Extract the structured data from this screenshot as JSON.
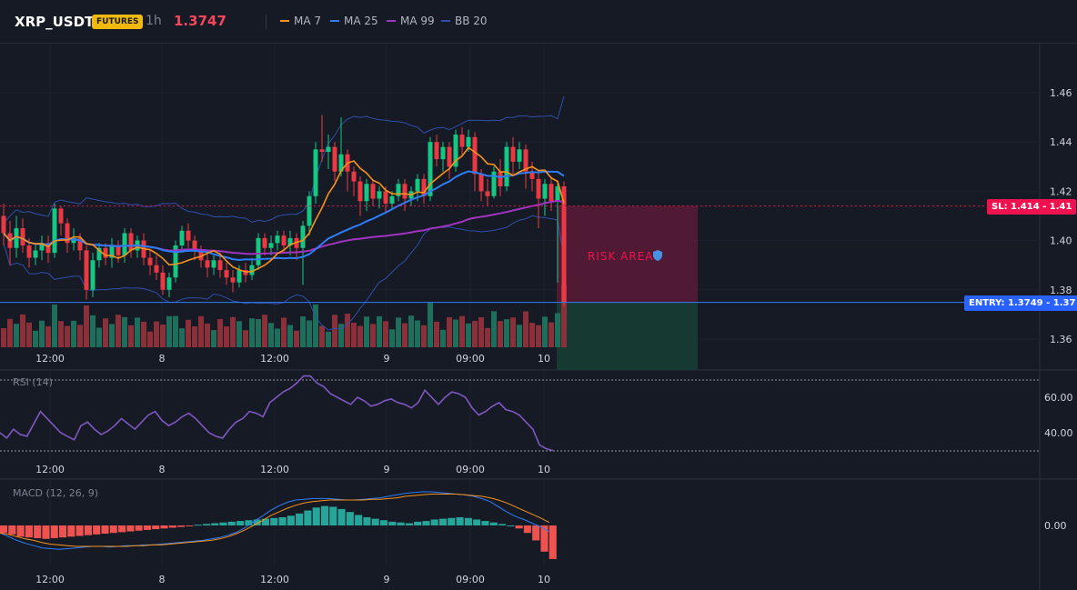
{
  "header": {
    "symbol": "XRP_USDT",
    "badge": "FUTURES",
    "interval": "1h",
    "price": "1.3747",
    "legend": [
      {
        "label": "MA 7",
        "color": "#f7931a"
      },
      {
        "label": "MA 25",
        "color": "#2f7df6"
      },
      {
        "label": "MA 99",
        "color": "#a033c0"
      },
      {
        "label": "BB 20",
        "color": "#2f4fa8"
      }
    ]
  },
  "trade": {
    "sl_label": "SL: 1.414 - 1.41",
    "entry_label": "ENTRY: 1.3749 - 1.37",
    "risk_label": "RISK AREA",
    "sl_price": 1.414,
    "entry_price": 1.3749
  },
  "colors": {
    "up": "#16c784",
    "down": "#ea3943",
    "vol_up": "#1e6e5c",
    "vol_down": "#8b2f38",
    "ma7": "#f7931a",
    "ma25": "#2f7df6",
    "ma99": "#a033c0",
    "bb": "#2f4fa8",
    "rsi": "#7e57c2",
    "macd": "#2f7df6",
    "signal": "#f7931a",
    "hist_up": "#26a69a",
    "hist_down": "#ef5350"
  },
  "chart_data": [
    {
      "type": "candlestick",
      "title": "XRP_USDT 1h",
      "x_tick_labels": [
        "12:00",
        "8",
        "12:00",
        "9",
        "09:00",
        "10"
      ],
      "y_ticks": [
        1.36,
        1.38,
        1.4,
        1.42,
        1.44,
        1.46
      ],
      "y_tick_labels": [
        "1.36",
        "1.38",
        "1.40",
        "1.42",
        "1.44",
        "1.46"
      ],
      "ylim": [
        1.35,
        1.48
      ],
      "candles": [
        [
          1.41,
          1.403,
          1.415,
          1.398
        ],
        [
          1.403,
          1.397,
          1.408,
          1.39
        ],
        [
          1.397,
          1.405,
          1.41,
          1.393
        ],
        [
          1.405,
          1.398,
          1.409,
          1.395
        ],
        [
          1.398,
          1.393,
          1.401,
          1.389
        ],
        [
          1.393,
          1.396,
          1.399,
          1.39
        ],
        [
          1.396,
          1.399,
          1.402,
          1.392
        ],
        [
          1.399,
          1.395,
          1.402,
          1.391
        ],
        [
          1.395,
          1.413,
          1.415,
          1.393
        ],
        [
          1.413,
          1.407,
          1.414,
          1.402
        ],
        [
          1.407,
          1.399,
          1.409,
          1.395
        ],
        [
          1.399,
          1.401,
          1.405,
          1.396
        ],
        [
          1.401,
          1.396,
          1.403,
          1.392
        ],
        [
          1.396,
          1.38,
          1.398,
          1.376
        ],
        [
          1.38,
          1.392,
          1.395,
          1.377
        ],
        [
          1.392,
          1.397,
          1.399,
          1.389
        ],
        [
          1.397,
          1.393,
          1.399,
          1.39
        ],
        [
          1.393,
          1.398,
          1.401,
          1.389
        ],
        [
          1.398,
          1.394,
          1.4,
          1.391
        ],
        [
          1.394,
          1.403,
          1.405,
          1.391
        ],
        [
          1.403,
          1.396,
          1.405,
          1.393
        ],
        [
          1.396,
          1.4,
          1.402,
          1.393
        ],
        [
          1.4,
          1.393,
          1.403,
          1.39
        ],
        [
          1.393,
          1.39,
          1.396,
          1.386
        ],
        [
          1.39,
          1.387,
          1.394,
          1.384
        ],
        [
          1.387,
          1.38,
          1.39,
          1.378
        ],
        [
          1.38,
          1.385,
          1.387,
          1.377
        ],
        [
          1.385,
          1.398,
          1.4,
          1.383
        ],
        [
          1.398,
          1.404,
          1.406,
          1.395
        ],
        [
          1.404,
          1.4,
          1.407,
          1.397
        ],
        [
          1.4,
          1.396,
          1.402,
          1.392
        ],
        [
          1.396,
          1.392,
          1.398,
          1.389
        ],
        [
          1.392,
          1.389,
          1.395,
          1.385
        ],
        [
          1.389,
          1.392,
          1.394,
          1.386
        ],
        [
          1.392,
          1.388,
          1.395,
          1.385
        ],
        [
          1.388,
          1.385,
          1.391,
          1.382
        ],
        [
          1.385,
          1.383,
          1.388,
          1.379
        ],
        [
          1.383,
          1.388,
          1.39,
          1.381
        ],
        [
          1.388,
          1.386,
          1.391,
          1.383
        ],
        [
          1.386,
          1.39,
          1.393,
          1.384
        ],
        [
          1.39,
          1.401,
          1.403,
          1.388
        ],
        [
          1.401,
          1.397,
          1.403,
          1.394
        ],
        [
          1.397,
          1.399,
          1.402,
          1.394
        ],
        [
          1.399,
          1.402,
          1.404,
          1.396
        ],
        [
          1.402,
          1.398,
          1.404,
          1.395
        ],
        [
          1.398,
          1.401,
          1.404,
          1.394
        ],
        [
          1.401,
          1.397,
          1.403,
          1.392
        ],
        [
          1.397,
          1.406,
          1.408,
          1.382
        ],
        [
          1.406,
          1.418,
          1.42,
          1.402
        ],
        [
          1.418,
          1.437,
          1.44,
          1.415
        ],
        [
          1.437,
          1.436,
          1.451,
          1.432
        ],
        [
          1.436,
          1.438,
          1.443,
          1.429
        ],
        [
          1.438,
          1.428,
          1.44,
          1.424
        ],
        [
          1.428,
          1.435,
          1.45,
          1.426
        ],
        [
          1.435,
          1.428,
          1.437,
          1.42
        ],
        [
          1.428,
          1.424,
          1.43,
          1.418
        ],
        [
          1.424,
          1.416,
          1.426,
          1.41
        ],
        [
          1.416,
          1.423,
          1.425,
          1.412
        ],
        [
          1.423,
          1.417,
          1.425,
          1.414
        ],
        [
          1.417,
          1.42,
          1.422,
          1.413
        ],
        [
          1.42,
          1.415,
          1.422,
          1.411
        ],
        [
          1.415,
          1.418,
          1.42,
          1.413
        ],
        [
          1.418,
          1.423,
          1.425,
          1.416
        ],
        [
          1.423,
          1.417,
          1.425,
          1.412
        ],
        [
          1.417,
          1.42,
          1.422,
          1.414
        ],
        [
          1.42,
          1.425,
          1.427,
          1.416
        ],
        [
          1.425,
          1.418,
          1.427,
          1.415
        ],
        [
          1.418,
          1.44,
          1.442,
          1.416
        ],
        [
          1.44,
          1.433,
          1.443,
          1.43
        ],
        [
          1.433,
          1.438,
          1.44,
          1.428
        ],
        [
          1.438,
          1.43,
          1.44,
          1.425
        ],
        [
          1.43,
          1.443,
          1.445,
          1.428
        ],
        [
          1.443,
          1.438,
          1.446,
          1.434
        ],
        [
          1.438,
          1.442,
          1.445,
          1.436
        ],
        [
          1.442,
          1.427,
          1.444,
          1.42
        ],
        [
          1.427,
          1.42,
          1.429,
          1.416
        ],
        [
          1.42,
          1.418,
          1.425,
          1.414
        ],
        [
          1.418,
          1.428,
          1.43,
          1.417
        ],
        [
          1.428,
          1.422,
          1.433,
          1.418
        ],
        [
          1.422,
          1.438,
          1.44,
          1.42
        ],
        [
          1.438,
          1.432,
          1.442,
          1.427
        ],
        [
          1.432,
          1.437,
          1.44,
          1.429
        ],
        [
          1.437,
          1.428,
          1.439,
          1.421
        ],
        [
          1.428,
          1.425,
          1.432,
          1.42
        ],
        [
          1.425,
          1.417,
          1.428,
          1.405
        ],
        [
          1.417,
          1.423,
          1.425,
          1.41
        ],
        [
          1.423,
          1.416,
          1.426,
          1.412
        ],
        [
          1.416,
          1.422,
          1.424,
          1.383
        ],
        [
          1.422,
          1.375,
          1.424,
          1.373
        ]
      ]
    },
    {
      "type": "line",
      "title": "RSI (14)",
      "y_tick_labels": [
        "60.00",
        "40.00"
      ],
      "ylim": [
        25,
        75
      ],
      "values": [
        40,
        37,
        42,
        39,
        38,
        45,
        52,
        48,
        44,
        40,
        38,
        36,
        44,
        46,
        42,
        39,
        41,
        44,
        48,
        45,
        42,
        46,
        50,
        52,
        47,
        44,
        46,
        49,
        51,
        48,
        44,
        40,
        38,
        37,
        42,
        46,
        48,
        52,
        51,
        49,
        57,
        60,
        63,
        65,
        68,
        72,
        72,
        68,
        66,
        62,
        60,
        58,
        56,
        60,
        58,
        55,
        56,
        58,
        59,
        57,
        56,
        54,
        57,
        64,
        60,
        56,
        60,
        63,
        62,
        60,
        54,
        50,
        52,
        55,
        57,
        53,
        52,
        50,
        46,
        42,
        33,
        31,
        30
      ]
    },
    {
      "type": "bar",
      "title": "MACD (12, 26, 9)",
      "y_tick_labels": [
        "0.00"
      ],
      "ylim": [
        -0.012,
        0.012
      ],
      "series": [
        {
          "values": [
            -0.001,
            -0.0012,
            -0.0015,
            -0.0016,
            -0.0017,
            -0.0018,
            -0.0017,
            -0.0016,
            -0.0015,
            -0.0014,
            -0.0013,
            -0.0012,
            -0.0011,
            -0.001,
            -0.0009,
            -0.0008,
            -0.0007,
            -0.0006,
            -0.0005,
            -0.0004,
            -0.0003,
            -0.0002,
            -0.0001,
            0.0001,
            0.0002,
            0.0003,
            0.0004,
            0.0005,
            0.0006,
            0.0007,
            0.0008,
            0.0009,
            0.001,
            0.0011,
            0.0013,
            0.0016,
            0.002,
            0.0024,
            0.0026,
            0.0025,
            0.0022,
            0.0018,
            0.0014,
            0.0011,
            0.0009,
            0.0007,
            0.0005,
            0.0004,
            0.0003,
            0.0005,
            0.0006,
            0.0008,
            0.0009,
            0.001,
            0.0011,
            0.001,
            0.0008,
            0.0006,
            0.0004,
            0.0002,
            0.0,
            -0.0004,
            -0.001,
            -0.002,
            -0.0035,
            -0.0045
          ]
        },
        {
          "values": [
            -0.001,
            -0.0015,
            -0.002,
            -0.0024,
            -0.0027,
            -0.003,
            -0.0031,
            -0.0032,
            -0.0031,
            -0.003,
            -0.0029,
            -0.0028,
            -0.0028,
            -0.0029,
            -0.0028,
            -0.0027,
            -0.0027,
            -0.0026,
            -0.0026,
            -0.0025,
            -0.0024,
            -0.0023,
            -0.0022,
            -0.0021,
            -0.002,
            -0.0018,
            -0.0016,
            -0.0013,
            -0.0009,
            -0.0003,
            0.0005,
            0.0012,
            0.002,
            0.0026,
            0.0031,
            0.0034,
            0.0035,
            0.0036,
            0.0036,
            0.0036,
            0.0035,
            0.0034,
            0.0034,
            0.0035,
            0.0036,
            0.0037,
            0.0039,
            0.0041,
            0.0043,
            0.0044,
            0.0045,
            0.0045,
            0.0044,
            0.0043,
            0.0042,
            0.0041,
            0.0039,
            0.0036,
            0.0032,
            0.0025,
            0.0018,
            0.0012,
            0.0008,
            0.0003,
            -0.0002,
            -0.0008
          ]
        },
        {
          "values": [
            -0.001,
            -0.0012,
            -0.0015,
            -0.0018,
            -0.002,
            -0.0023,
            -0.0025,
            -0.0026,
            -0.0027,
            -0.0028,
            -0.0028,
            -0.0028,
            -0.0028,
            -0.0028,
            -0.0028,
            -0.0028,
            -0.0027,
            -0.0027,
            -0.0026,
            -0.0026,
            -0.0025,
            -0.0024,
            -0.0023,
            -0.0022,
            -0.0021,
            -0.002,
            -0.0018,
            -0.0015,
            -0.0011,
            -0.0006,
            0.0,
            0.0006,
            0.0013,
            0.0018,
            0.0023,
            0.0027,
            0.003,
            0.0032,
            0.0033,
            0.0034,
            0.0034,
            0.0034,
            0.0034,
            0.0034,
            0.0035,
            0.0035,
            0.0036,
            0.0037,
            0.0039,
            0.004,
            0.0041,
            0.0042,
            0.0042,
            0.0042,
            0.0042,
            0.0041,
            0.004,
            0.0039,
            0.0037,
            0.0034,
            0.003,
            0.0025,
            0.002,
            0.0015,
            0.001,
            0.0004
          ]
        }
      ]
    }
  ]
}
